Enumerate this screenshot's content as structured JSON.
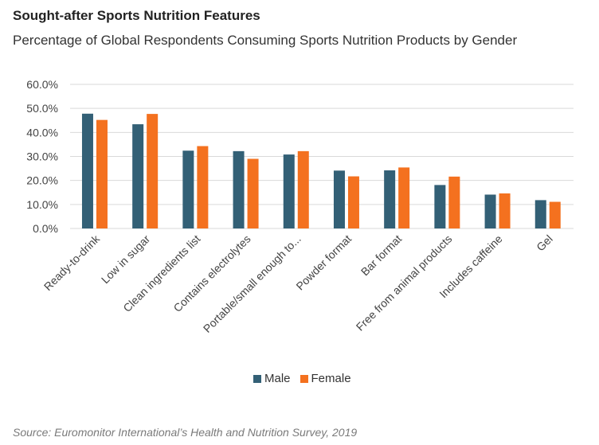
{
  "colors": {
    "male": "#336076",
    "female": "#f4711f",
    "grid": "#d9d9d9",
    "axis_text": "#444444"
  },
  "chart_data": {
    "type": "bar",
    "title": "Sought-after Sports Nutrition Features",
    "subtitle": "Percentage of Global Respondents Consuming Sports Nutrition Products by Gender",
    "categories": [
      "Ready-to-drink",
      "Low in sugar",
      "Clean ingredients list",
      "Contains electrolytes",
      "Portable/small enough to...",
      "Powder format",
      "Bar format",
      "Free from animal products",
      "Includes caffeine",
      "Gel"
    ],
    "series": [
      {
        "name": "Male",
        "values": [
          47.8,
          43.4,
          32.4,
          32.2,
          30.8,
          24.1,
          24.2,
          18.1,
          14.1,
          11.8
        ]
      },
      {
        "name": "Female",
        "values": [
          45.2,
          47.7,
          34.3,
          29.0,
          32.2,
          21.7,
          25.4,
          21.6,
          14.6,
          11.1
        ]
      }
    ],
    "ylim": [
      0,
      60
    ],
    "yticks": [
      "0.0%",
      "10.0%",
      "20.0%",
      "30.0%",
      "40.0%",
      "50.0%",
      "60.0%"
    ],
    "xlabel": "",
    "ylabel": "",
    "grid": true,
    "legend_position": "bottom"
  },
  "source": "Source: Euromonitor International’s Health and Nutrition Survey, 2019"
}
